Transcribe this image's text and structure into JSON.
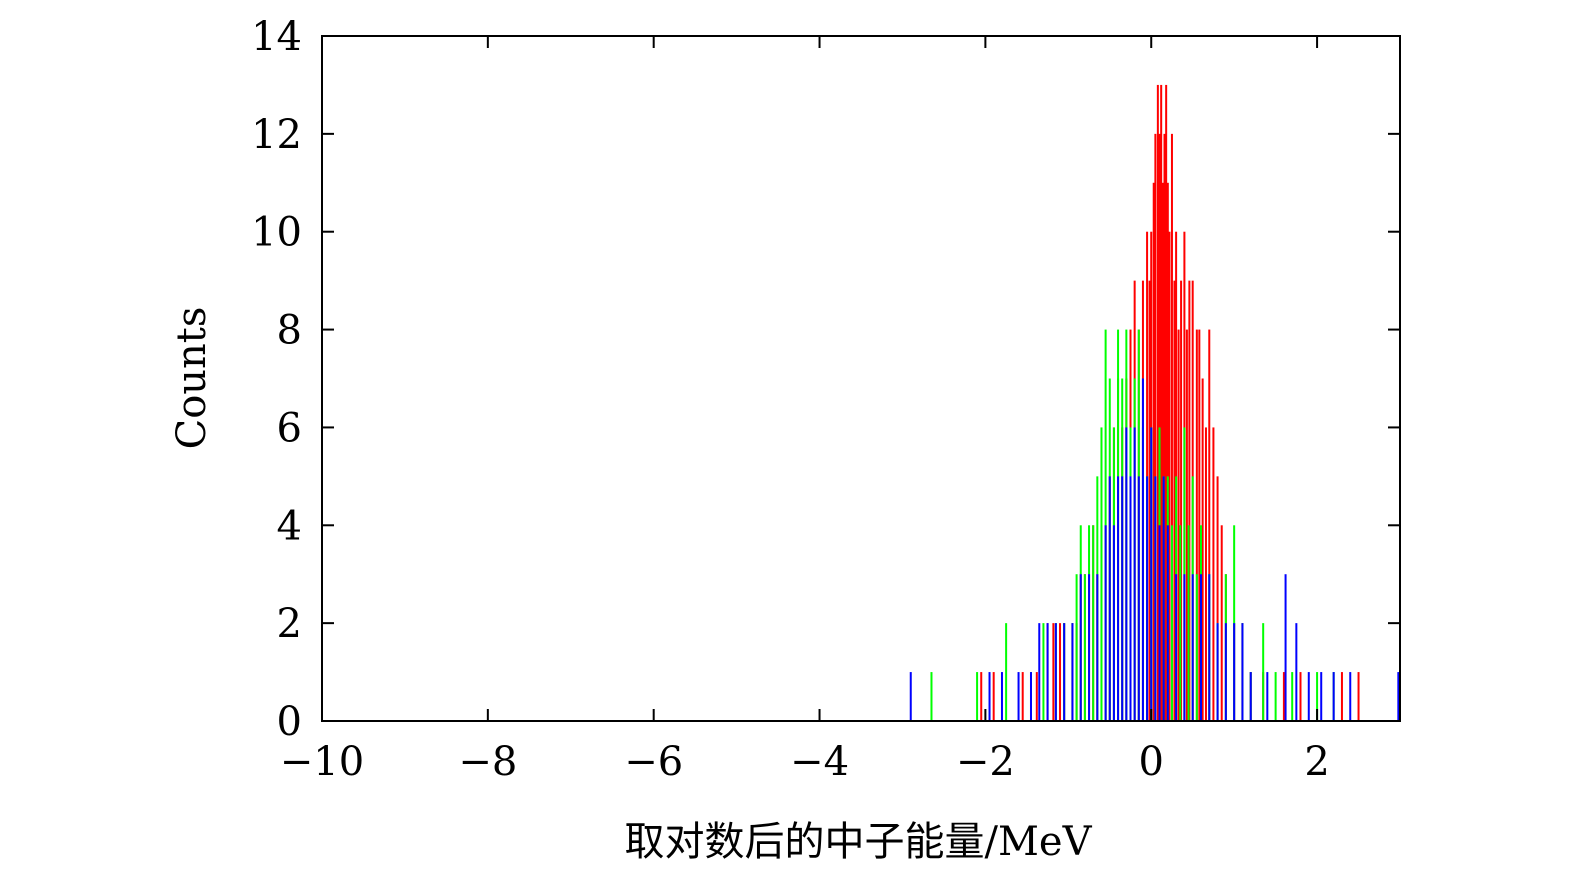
{
  "chart_data": {
    "type": "bar",
    "title": "",
    "xlabel": "取对数后的中子能量/MeV",
    "ylabel": "Counts",
    "xlim": [
      -10,
      3
    ],
    "ylim": [
      0,
      14
    ],
    "x_ticks": [
      -10,
      -8,
      -6,
      -4,
      -2,
      0,
      2
    ],
    "x_tick_labels": [
      "−10",
      "−8",
      "−6",
      "−4",
      "−2",
      "0",
      "2"
    ],
    "y_ticks": [
      0,
      2,
      4,
      6,
      8,
      10,
      12,
      14
    ],
    "y_tick_labels": [
      "0",
      "2",
      "4",
      "6",
      "8",
      "10",
      "12",
      "14"
    ],
    "grid": false,
    "legend": "none",
    "bin_width": 0.01,
    "series": [
      {
        "color": "#ff0000",
        "points": [
          [
            -2.05,
            1
          ],
          [
            -1.9,
            1
          ],
          [
            -1.55,
            1
          ],
          [
            -1.38,
            1
          ],
          [
            -1.25,
            2
          ],
          [
            -1.18,
            2
          ],
          [
            -1.1,
            2
          ],
          [
            -1.05,
            2
          ],
          [
            -0.95,
            2
          ],
          [
            -0.9,
            2
          ],
          [
            -0.85,
            3
          ],
          [
            -0.8,
            3
          ],
          [
            -0.75,
            3
          ],
          [
            -0.7,
            4
          ],
          [
            -0.65,
            3
          ],
          [
            -0.6,
            4
          ],
          [
            -0.55,
            4
          ],
          [
            -0.5,
            5
          ],
          [
            -0.45,
            6
          ],
          [
            -0.4,
            7
          ],
          [
            -0.35,
            6
          ],
          [
            -0.3,
            7
          ],
          [
            -0.25,
            8
          ],
          [
            -0.2,
            9
          ],
          [
            -0.15,
            8
          ],
          [
            -0.1,
            9
          ],
          [
            -0.05,
            10
          ],
          [
            -0.02,
            9
          ],
          [
            0.0,
            10
          ],
          [
            0.03,
            11
          ],
          [
            0.05,
            12
          ],
          [
            0.08,
            13
          ],
          [
            0.1,
            12
          ],
          [
            0.12,
            13
          ],
          [
            0.14,
            11
          ],
          [
            0.16,
            12
          ],
          [
            0.18,
            13
          ],
          [
            0.2,
            11
          ],
          [
            0.22,
            10
          ],
          [
            0.25,
            12
          ],
          [
            0.28,
            9
          ],
          [
            0.3,
            10
          ],
          [
            0.33,
            8
          ],
          [
            0.36,
            9
          ],
          [
            0.4,
            10
          ],
          [
            0.43,
            8
          ],
          [
            0.46,
            9
          ],
          [
            0.5,
            9
          ],
          [
            0.55,
            8
          ],
          [
            0.58,
            8
          ],
          [
            0.62,
            7
          ],
          [
            0.66,
            6
          ],
          [
            0.7,
            8
          ],
          [
            0.75,
            6
          ],
          [
            0.8,
            5
          ],
          [
            0.85,
            4
          ],
          [
            0.9,
            3
          ],
          [
            1.0,
            2
          ],
          [
            1.1,
            2
          ],
          [
            1.2,
            1
          ],
          [
            1.35,
            1
          ],
          [
            1.6,
            1
          ],
          [
            1.8,
            1
          ],
          [
            2.3,
            1
          ],
          [
            2.5,
            1
          ]
        ]
      },
      {
        "color": "#00ff00",
        "points": [
          [
            -2.65,
            1
          ],
          [
            -2.1,
            1
          ],
          [
            -1.75,
            2
          ],
          [
            -1.45,
            1
          ],
          [
            -1.3,
            2
          ],
          [
            -1.15,
            2
          ],
          [
            -1.05,
            2
          ],
          [
            -0.95,
            2
          ],
          [
            -0.9,
            3
          ],
          [
            -0.85,
            4
          ],
          [
            -0.8,
            3
          ],
          [
            -0.75,
            4
          ],
          [
            -0.7,
            4
          ],
          [
            -0.65,
            5
          ],
          [
            -0.6,
            6
          ],
          [
            -0.55,
            8
          ],
          [
            -0.5,
            7
          ],
          [
            -0.45,
            6
          ],
          [
            -0.4,
            8
          ],
          [
            -0.35,
            7
          ],
          [
            -0.3,
            8
          ],
          [
            -0.25,
            6
          ],
          [
            -0.2,
            7
          ],
          [
            -0.15,
            8
          ],
          [
            -0.1,
            6
          ],
          [
            -0.05,
            5
          ],
          [
            0.0,
            6
          ],
          [
            0.05,
            5
          ],
          [
            0.1,
            6
          ],
          [
            0.15,
            5
          ],
          [
            0.2,
            5
          ],
          [
            0.25,
            4
          ],
          [
            0.3,
            5
          ],
          [
            0.35,
            4
          ],
          [
            0.4,
            6
          ],
          [
            0.45,
            4
          ],
          [
            0.5,
            5
          ],
          [
            0.55,
            3
          ],
          [
            0.6,
            4
          ],
          [
            0.7,
            3
          ],
          [
            0.8,
            2
          ],
          [
            0.9,
            3
          ],
          [
            1.0,
            4
          ],
          [
            1.1,
            2
          ],
          [
            1.2,
            1
          ],
          [
            1.35,
            2
          ],
          [
            1.5,
            1
          ],
          [
            1.7,
            1
          ],
          [
            2.0,
            1
          ],
          [
            2.2,
            1
          ]
        ]
      },
      {
        "color": "#0000ff",
        "points": [
          [
            -2.9,
            1
          ],
          [
            -1.95,
            1
          ],
          [
            -1.8,
            1
          ],
          [
            -1.6,
            1
          ],
          [
            -1.45,
            1
          ],
          [
            -1.35,
            2
          ],
          [
            -1.25,
            2
          ],
          [
            -1.15,
            2
          ],
          [
            -1.05,
            2
          ],
          [
            -0.95,
            2
          ],
          [
            -0.85,
            3
          ],
          [
            -0.75,
            3
          ],
          [
            -0.65,
            3
          ],
          [
            -0.55,
            4
          ],
          [
            -0.5,
            5
          ],
          [
            -0.45,
            4
          ],
          [
            -0.4,
            5
          ],
          [
            -0.35,
            5
          ],
          [
            -0.3,
            6
          ],
          [
            -0.25,
            5
          ],
          [
            -0.2,
            6
          ],
          [
            -0.15,
            5
          ],
          [
            -0.1,
            7
          ],
          [
            -0.05,
            5
          ],
          [
            0.0,
            6
          ],
          [
            0.05,
            5
          ],
          [
            0.1,
            4
          ],
          [
            0.15,
            5
          ],
          [
            0.2,
            4
          ],
          [
            0.3,
            3
          ],
          [
            0.4,
            3
          ],
          [
            0.5,
            3
          ],
          [
            0.6,
            3
          ],
          [
            0.7,
            3
          ],
          [
            0.8,
            2
          ],
          [
            0.9,
            2
          ],
          [
            1.0,
            2
          ],
          [
            1.1,
            2
          ],
          [
            1.2,
            1
          ],
          [
            1.4,
            1
          ],
          [
            1.62,
            3
          ],
          [
            1.75,
            2
          ],
          [
            1.9,
            1
          ],
          [
            2.05,
            1
          ],
          [
            2.2,
            1
          ],
          [
            2.4,
            1
          ],
          [
            2.98,
            1
          ]
        ]
      }
    ]
  }
}
